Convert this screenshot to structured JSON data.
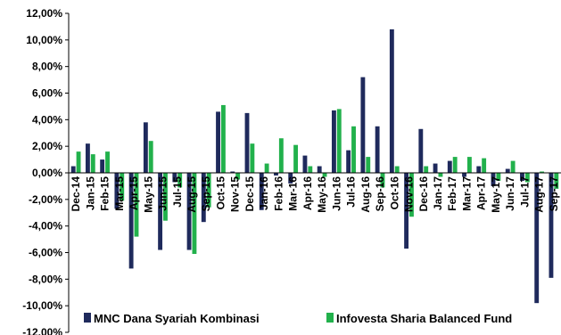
{
  "chart_data": {
    "type": "bar",
    "title": "",
    "xlabel": "",
    "ylabel": "",
    "ylim": [
      -12,
      12
    ],
    "yticks": [
      "12,00%",
      "10,00%",
      "8,00%",
      "6,00%",
      "4,00%",
      "2,00%",
      "0,00%",
      "-2,00%",
      "-4,00%",
      "-6,00%",
      "-8,00%",
      "-10,00%",
      "-12,00%"
    ],
    "yticks_values": [
      12,
      10,
      8,
      6,
      4,
      2,
      0,
      -2,
      -4,
      -6,
      -8,
      -10,
      -12
    ],
    "grid": false,
    "legend_position": "bottom",
    "categories": [
      "Dec-14",
      "Jan-15",
      "Feb-15",
      "Mar-15",
      "Apr-15",
      "May-15",
      "Jun-15",
      "Jul-15",
      "Aug-15",
      "Sep-15",
      "Oct-15",
      "Nov-15",
      "Dec-15",
      "Jan-16",
      "Feb-16",
      "Mar-16",
      "Apr-16",
      "May-16",
      "Jun-16",
      "Jul-16",
      "Aug-16",
      "Sep-16",
      "Oct-16",
      "Nov-16",
      "Dec-16",
      "Jan-17",
      "Feb-17",
      "Mar-17",
      "Apr-17",
      "May-17",
      "Jun-17",
      "Jul-17",
      "Aug-17",
      "Sep-17"
    ],
    "series": [
      {
        "name": "MNC Dana Syariah Kombinasi",
        "color": "#1F2A5C",
        "values": [
          0.5,
          2.2,
          1.0,
          -2.7,
          -7.2,
          3.8,
          -5.8,
          -0.7,
          -5.8,
          -3.7,
          4.6,
          0.1,
          4.5,
          -2.8,
          -0.2,
          -0.8,
          1.3,
          0.5,
          4.7,
          1.7,
          7.2,
          3.5,
          10.8,
          -5.7,
          3.3,
          0.7,
          0.9,
          -0.3,
          0.5,
          -1.0,
          0.3,
          -0.6,
          -9.8,
          -7.9
        ]
      },
      {
        "name": "Infovesta Sharia Balanced Fund",
        "color": "#22B14C",
        "values": [
          1.6,
          1.4,
          1.6,
          -2.1,
          -4.8,
          2.4,
          -3.6,
          -1.1,
          -6.1,
          -2.6,
          5.1,
          -0.5,
          2.2,
          0.7,
          2.6,
          2.1,
          0.5,
          -0.3,
          4.8,
          3.5,
          1.2,
          -1.1,
          0.5,
          -3.3,
          0.5,
          -0.3,
          1.2,
          1.2,
          1.1,
          -0.6,
          0.9,
          -0.7,
          0.1,
          -1.2
        ]
      }
    ]
  }
}
